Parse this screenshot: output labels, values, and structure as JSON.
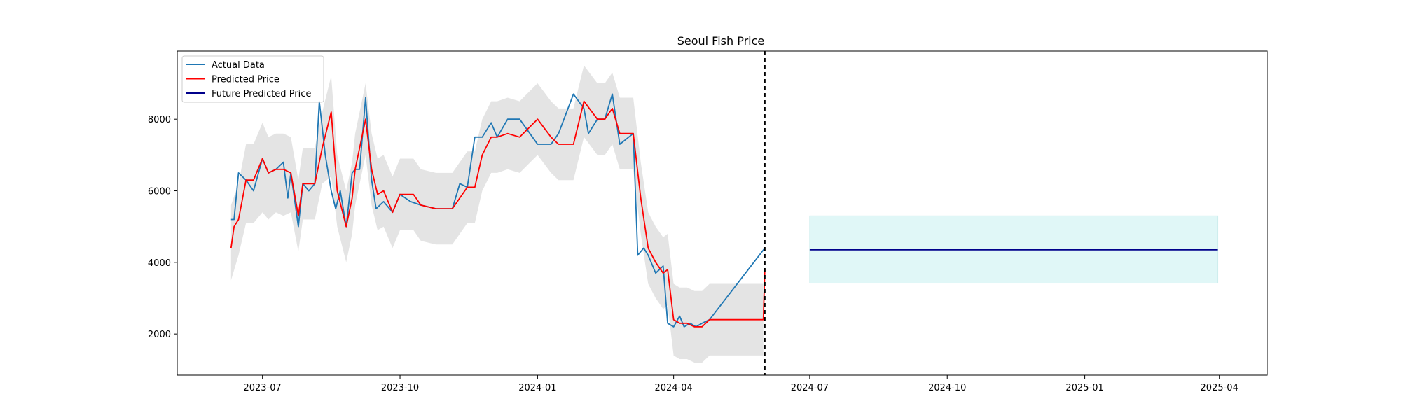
{
  "chart_data": {
    "type": "line",
    "title": "Seoul Fish Price",
    "xlabel": "",
    "ylabel": "",
    "x_axis": {
      "type": "date",
      "range": [
        "2023-05-05",
        "2025-05-03"
      ],
      "ticks": [
        "2023-07-01",
        "2023-10-01",
        "2024-01-01",
        "2024-04-01",
        "2024-07-01",
        "2024-10-01",
        "2025-01-01",
        "2025-04-01"
      ],
      "tick_labels": [
        "2023-07",
        "2023-10",
        "2024-01",
        "2024-04",
        "2024-07",
        "2024-10",
        "2025-01",
        "2025-04"
      ]
    },
    "y_axis": {
      "range": [
        850,
        9900
      ],
      "ticks": [
        2000,
        4000,
        6000,
        8000
      ],
      "tick_labels": [
        "2000",
        "4000",
        "6000",
        "8000"
      ]
    },
    "grid": false,
    "legend": {
      "placement": "upper-left",
      "entries": [
        "Actual Data",
        "Predicted Price",
        "Future Predicted Price"
      ]
    },
    "colors": {
      "actual": "#1f77b4",
      "predicted": "#ff0000",
      "future": "#00008b",
      "band": "#d9d9d9",
      "future_band": "#e0f7f7",
      "cutoff": "#000000"
    },
    "annotations": [
      {
        "type": "vertical-dashed-line",
        "x": "2024-06-01"
      }
    ],
    "series": [
      {
        "name": "Actual Data",
        "color": "#1f77b4",
        "x": [
          "2023-06-10",
          "2023-06-12",
          "2023-06-15",
          "2023-06-20",
          "2023-06-25",
          "2023-07-01",
          "2023-07-05",
          "2023-07-10",
          "2023-07-15",
          "2023-07-18",
          "2023-07-20",
          "2023-07-25",
          "2023-07-28",
          "2023-08-01",
          "2023-08-05",
          "2023-08-08",
          "2023-08-12",
          "2023-08-16",
          "2023-08-19",
          "2023-08-22",
          "2023-08-26",
          "2023-08-30",
          "2023-09-01",
          "2023-09-04",
          "2023-09-08",
          "2023-09-12",
          "2023-09-15",
          "2023-09-20",
          "2023-09-26",
          "2023-10-01",
          "2023-10-08",
          "2023-10-15",
          "2023-10-25",
          "2023-11-05",
          "2023-11-10",
          "2023-11-15",
          "2023-11-20",
          "2023-11-25",
          "2023-12-01",
          "2023-12-05",
          "2023-12-12",
          "2023-12-20",
          "2024-01-01",
          "2024-01-10",
          "2024-01-15",
          "2024-01-25",
          "2024-02-01",
          "2024-02-04",
          "2024-02-10",
          "2024-02-15",
          "2024-02-20",
          "2024-02-25",
          "2024-03-05",
          "2024-03-08",
          "2024-03-12",
          "2024-03-15",
          "2024-03-20",
          "2024-03-25",
          "2024-03-28",
          "2024-04-01",
          "2024-04-05",
          "2024-04-08",
          "2024-04-12",
          "2024-04-16",
          "2024-04-20",
          "2024-04-25",
          "2024-06-01"
        ],
        "values": [
          5200,
          5200,
          6500,
          6300,
          6000,
          6900,
          6500,
          6600,
          6800,
          5800,
          6500,
          5000,
          6200,
          6000,
          6200,
          8500,
          7000,
          6000,
          5500,
          6000,
          5000,
          6500,
          6600,
          6600,
          8600,
          6300,
          5500,
          5700,
          5400,
          5900,
          5700,
          5600,
          5500,
          5500,
          6200,
          6100,
          7500,
          7500,
          7900,
          7500,
          8000,
          8000,
          7300,
          7300,
          7600,
          8700,
          8300,
          7600,
          8000,
          8000,
          8700,
          7300,
          7600,
          4200,
          4400,
          4200,
          3700,
          3900,
          2300,
          2200,
          2500,
          2200,
          2300,
          2200,
          2300,
          2400,
          4400
        ]
      },
      {
        "name": "Predicted Price",
        "color": "#ff0000",
        "x": [
          "2023-06-10",
          "2023-06-12",
          "2023-06-15",
          "2023-06-20",
          "2023-06-25",
          "2023-07-01",
          "2023-07-05",
          "2023-07-10",
          "2023-07-15",
          "2023-07-20",
          "2023-07-25",
          "2023-07-28",
          "2023-08-01",
          "2023-08-05",
          "2023-08-10",
          "2023-08-16",
          "2023-08-20",
          "2023-08-26",
          "2023-08-30",
          "2023-09-01",
          "2023-09-08",
          "2023-09-12",
          "2023-09-16",
          "2023-09-20",
          "2023-09-26",
          "2023-10-01",
          "2023-10-10",
          "2023-10-15",
          "2023-10-25",
          "2023-11-05",
          "2023-11-15",
          "2023-11-20",
          "2023-11-25",
          "2023-12-01",
          "2023-12-05",
          "2023-12-12",
          "2023-12-20",
          "2024-01-01",
          "2024-01-10",
          "2024-01-15",
          "2024-01-25",
          "2024-02-01",
          "2024-02-10",
          "2024-02-15",
          "2024-02-20",
          "2024-02-25",
          "2024-03-05",
          "2024-03-10",
          "2024-03-15",
          "2024-03-20",
          "2024-03-25",
          "2024-03-28",
          "2024-04-01",
          "2024-04-05",
          "2024-04-10",
          "2024-04-15",
          "2024-04-20",
          "2024-04-25",
          "2024-05-31",
          "2024-06-01"
        ],
        "values": [
          4400,
          5000,
          5200,
          6300,
          6300,
          6900,
          6500,
          6600,
          6600,
          6500,
          5300,
          6200,
          6200,
          6200,
          7200,
          8200,
          6000,
          5000,
          5800,
          6600,
          8000,
          6600,
          5900,
          6000,
          5400,
          5900,
          5900,
          5600,
          5500,
          5500,
          6100,
          6100,
          7000,
          7500,
          7500,
          7600,
          7500,
          8000,
          7500,
          7300,
          7300,
          8500,
          8000,
          8000,
          8300,
          7600,
          7600,
          5800,
          4400,
          4000,
          3700,
          3800,
          2400,
          2300,
          2300,
          2200,
          2200,
          2400,
          2400,
          3800
        ]
      },
      {
        "name": "Future Predicted Price",
        "color": "#00008b",
        "x": [
          "2024-07-01",
          "2025-03-31"
        ],
        "values": [
          4350,
          4350
        ]
      }
    ],
    "confidence_band": {
      "x": [
        "2023-06-10",
        "2023-06-15",
        "2023-06-20",
        "2023-06-25",
        "2023-07-01",
        "2023-07-05",
        "2023-07-10",
        "2023-07-15",
        "2023-07-20",
        "2023-07-25",
        "2023-07-28",
        "2023-08-01",
        "2023-08-05",
        "2023-08-10",
        "2023-08-16",
        "2023-08-20",
        "2023-08-26",
        "2023-08-30",
        "2023-09-01",
        "2023-09-08",
        "2023-09-12",
        "2023-09-16",
        "2023-09-20",
        "2023-09-26",
        "2023-10-01",
        "2023-10-10",
        "2023-10-15",
        "2023-10-25",
        "2023-11-05",
        "2023-11-15",
        "2023-11-20",
        "2023-11-25",
        "2023-12-01",
        "2023-12-05",
        "2023-12-12",
        "2023-12-20",
        "2024-01-01",
        "2024-01-10",
        "2024-01-15",
        "2024-01-25",
        "2024-02-01",
        "2024-02-10",
        "2024-02-15",
        "2024-02-20",
        "2024-02-25",
        "2024-03-05",
        "2024-03-10",
        "2024-03-15",
        "2024-03-20",
        "2024-03-25",
        "2024-03-28",
        "2024-04-01",
        "2024-04-05",
        "2024-04-10",
        "2024-04-15",
        "2024-04-20",
        "2024-04-25",
        "2024-05-31"
      ],
      "lower": [
        3500,
        4200,
        5100,
        5100,
        5400,
        5200,
        5400,
        5300,
        5400,
        4300,
        5200,
        5200,
        5200,
        6200,
        6400,
        5000,
        4000,
        4800,
        5600,
        7000,
        5600,
        4900,
        5000,
        4400,
        4900,
        4900,
        4600,
        4500,
        4500,
        5100,
        5100,
        6000,
        6500,
        6500,
        6600,
        6500,
        7000,
        6500,
        6300,
        6300,
        7500,
        7000,
        7000,
        7300,
        6600,
        6600,
        4800,
        3400,
        3000,
        2700,
        2800,
        1400,
        1300,
        1300,
        1200,
        1200,
        1400,
        1400
      ],
      "upper": [
        5600,
        6200,
        7300,
        7300,
        7900,
        7500,
        7600,
        7600,
        7500,
        6300,
        7200,
        7200,
        7200,
        8200,
        9200,
        7000,
        6000,
        6800,
        7600,
        9000,
        7600,
        6900,
        7000,
        6400,
        6900,
        6900,
        6600,
        6500,
        6500,
        7100,
        7100,
        8000,
        8500,
        8500,
        8600,
        8500,
        9000,
        8500,
        8300,
        8300,
        9500,
        9000,
        9000,
        9300,
        8600,
        8600,
        6800,
        5400,
        5000,
        4700,
        4800,
        3400,
        3300,
        3300,
        3200,
        3200,
        3400,
        3400
      ]
    },
    "future_band": {
      "x": [
        "2024-07-01",
        "2025-03-31"
      ],
      "lower": 3420,
      "upper": 5300
    }
  }
}
